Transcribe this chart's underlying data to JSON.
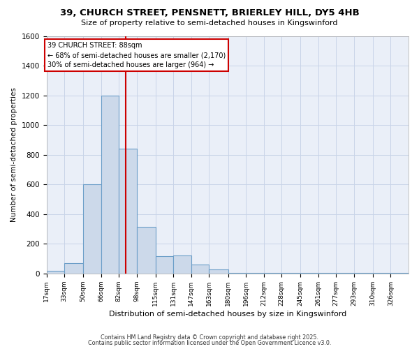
{
  "title": "39, CHURCH STREET, PENSNETT, BRIERLEY HILL, DY5 4HB",
  "subtitle": "Size of property relative to semi-detached houses in Kingswinford",
  "xlabel": "Distribution of semi-detached houses by size in Kingswinford",
  "ylabel": "Number of semi-detached properties",
  "bar_color": "#ccd9ea",
  "bar_edge_color": "#6b9ec8",
  "grid_color": "#c8d4e8",
  "bg_color": "#eaeff8",
  "red_line_x": 88,
  "annotation_text": "39 CHURCH STREET: 88sqm\n← 68% of semi-detached houses are smaller (2,170)\n30% of semi-detached houses are larger (964) →",
  "annotation_box_color": "#ffffff",
  "annotation_border_color": "#cc0000",
  "footnote1": "Contains HM Land Registry data © Crown copyright and database right 2025.",
  "footnote2": "Contains public sector information licensed under the Open Government Licence v3.0.",
  "bin_edges": [
    17,
    33,
    50,
    66,
    82,
    98,
    115,
    131,
    147,
    163,
    180,
    196,
    212,
    228,
    245,
    261,
    277,
    293,
    310,
    326,
    342
  ],
  "bar_heights": [
    20,
    72,
    600,
    1200,
    840,
    315,
    115,
    120,
    60,
    30,
    5,
    3,
    3,
    3,
    3,
    3,
    3,
    3,
    3,
    5
  ],
  "ylim": [
    0,
    1600
  ],
  "yticks": [
    0,
    200,
    400,
    600,
    800,
    1000,
    1200,
    1400,
    1600
  ]
}
